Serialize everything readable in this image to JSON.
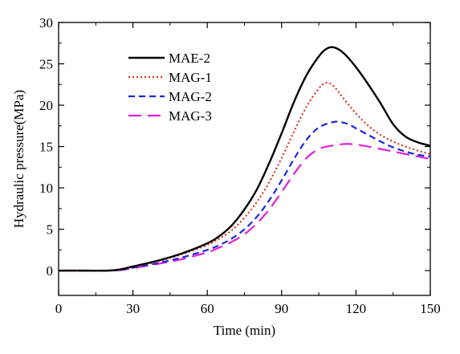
{
  "chart_data": {
    "type": "line",
    "title": "",
    "xlabel": "Time (min)",
    "ylabel": "Hydraulic pressure(MPa)",
    "xlim": [
      0,
      150
    ],
    "ylim": [
      -3,
      30
    ],
    "xticks": [
      0,
      30,
      60,
      90,
      120,
      150
    ],
    "yticks": [
      0,
      5,
      10,
      15,
      20,
      25,
      30
    ],
    "grid": false,
    "legend_position": "top-left",
    "series": [
      {
        "name": "MAE-2",
        "color": "#000000",
        "dash": "solid",
        "x": [
          0,
          10,
          20,
          25,
          30,
          40,
          50,
          60,
          65,
          70,
          75,
          80,
          85,
          90,
          95,
          100,
          105,
          108,
          111,
          115,
          120,
          125,
          130,
          135,
          140,
          145,
          150
        ],
        "y": [
          0,
          0,
          0,
          0.15,
          0.5,
          1.2,
          2.1,
          3.3,
          4.2,
          5.5,
          7.4,
          9.8,
          13.0,
          16.6,
          20.4,
          23.6,
          25.9,
          26.8,
          27.0,
          26.3,
          24.6,
          22.5,
          20.2,
          17.7,
          16.2,
          15.5,
          15.1
        ]
      },
      {
        "name": "MAG-1",
        "color": "#e03020",
        "dash": "dotted",
        "x": [
          0,
          10,
          20,
          25,
          30,
          40,
          50,
          60,
          65,
          70,
          75,
          80,
          85,
          90,
          95,
          100,
          105,
          108,
          111,
          115,
          120,
          125,
          130,
          135,
          140,
          145,
          150
        ],
        "y": [
          0,
          0,
          0,
          0.12,
          0.45,
          1.1,
          2.0,
          3.1,
          3.9,
          4.9,
          6.4,
          8.3,
          10.7,
          13.6,
          16.8,
          19.8,
          22.0,
          22.7,
          22.3,
          20.8,
          19.0,
          17.5,
          16.4,
          15.6,
          15.0,
          14.5,
          14.1
        ]
      },
      {
        "name": "MAG-2",
        "color": "#1c28d8",
        "dash": "dashed",
        "x": [
          0,
          10,
          20,
          25,
          30,
          40,
          50,
          60,
          65,
          70,
          75,
          80,
          85,
          90,
          95,
          100,
          105,
          110,
          113,
          117,
          120,
          125,
          130,
          135,
          140,
          145,
          150
        ],
        "y": [
          0,
          0,
          0,
          0.08,
          0.35,
          0.9,
          1.6,
          2.5,
          3.1,
          3.9,
          5.0,
          6.5,
          8.5,
          10.9,
          13.5,
          15.8,
          17.3,
          17.9,
          18.0,
          17.7,
          17.2,
          16.4,
          15.6,
          14.9,
          14.4,
          14.0,
          13.8
        ]
      },
      {
        "name": "MAG-3",
        "color": "#e020d8",
        "dash": "longdash",
        "x": [
          0,
          10,
          20,
          25,
          30,
          40,
          50,
          60,
          65,
          70,
          75,
          80,
          85,
          90,
          95,
          100,
          105,
          110,
          115,
          118,
          121,
          125,
          130,
          135,
          140,
          145,
          150
        ],
        "y": [
          0,
          0,
          0,
          0.06,
          0.3,
          0.8,
          1.4,
          2.2,
          2.8,
          3.5,
          4.4,
          5.7,
          7.4,
          9.5,
          11.7,
          13.6,
          14.7,
          15.1,
          15.3,
          15.3,
          15.2,
          15.0,
          14.7,
          14.4,
          14.1,
          13.8,
          13.5
        ]
      }
    ]
  }
}
